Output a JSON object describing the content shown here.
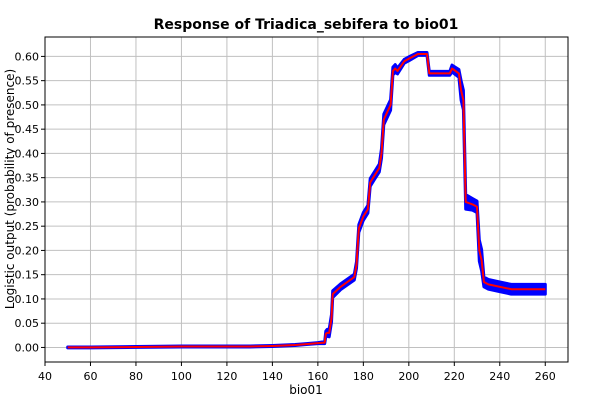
{
  "chart_data": {
    "type": "line",
    "title": "Response of Triadica_sebifera to bio01",
    "xlabel": "bio01",
    "ylabel": "Logistic output (probability of presence)",
    "xlim": [
      40,
      270
    ],
    "ylim": [
      -0.03,
      0.64
    ],
    "x_ticks": [
      40,
      60,
      80,
      100,
      120,
      140,
      160,
      180,
      200,
      220,
      240,
      260
    ],
    "y_ticks": [
      0.0,
      0.05,
      0.1,
      0.15,
      0.2,
      0.25,
      0.3,
      0.35,
      0.4,
      0.45,
      0.5,
      0.55,
      0.6
    ],
    "grid": true,
    "legend": "none",
    "colors": {
      "mean": "#ff0000",
      "band": "#0000ff",
      "grid": "#c0c0c0"
    },
    "series": [
      {
        "x": [
          50,
          60,
          80,
          100,
          120,
          130,
          140,
          150,
          155,
          160,
          163,
          163.5,
          164,
          165,
          166,
          166.5,
          170,
          176,
          177,
          178,
          180,
          182,
          183,
          185,
          187,
          188,
          189,
          190,
          192,
          193,
          194,
          195,
          198,
          200,
          204,
          208,
          209,
          214,
          218,
          219,
          222,
          223,
          224,
          225,
          228,
          230,
          231,
          232,
          233,
          235,
          240,
          245,
          260
        ],
        "y": [
          0.0,
          0.0,
          0.001,
          0.002,
          0.002,
          0.002,
          0.003,
          0.005,
          0.007,
          0.009,
          0.01,
          0.028,
          0.03,
          0.03,
          0.06,
          0.11,
          0.125,
          0.145,
          0.17,
          0.245,
          0.27,
          0.285,
          0.34,
          0.355,
          0.37,
          0.4,
          0.47,
          0.48,
          0.5,
          0.57,
          0.575,
          0.57,
          0.59,
          0.595,
          0.605,
          0.605,
          0.565,
          0.565,
          0.565,
          0.575,
          0.565,
          0.53,
          0.51,
          0.3,
          0.295,
          0.29,
          0.2,
          0.18,
          0.135,
          0.13,
          0.125,
          0.12,
          0.12
        ],
        "band_halfwidth": [
          0.001,
          0.001,
          0.001,
          0.001,
          0.001,
          0.001,
          0.001,
          0.001,
          0.001,
          0.001,
          0.002,
          0.006,
          0.007,
          0.008,
          0.008,
          0.007,
          0.006,
          0.006,
          0.007,
          0.008,
          0.008,
          0.008,
          0.008,
          0.008,
          0.008,
          0.01,
          0.011,
          0.011,
          0.011,
          0.008,
          0.008,
          0.006,
          0.004,
          0.004,
          0.003,
          0.003,
          0.004,
          0.004,
          0.004,
          0.007,
          0.008,
          0.02,
          0.02,
          0.015,
          0.012,
          0.012,
          0.022,
          0.022,
          0.01,
          0.01,
          0.01,
          0.01,
          0.01
        ]
      }
    ]
  }
}
